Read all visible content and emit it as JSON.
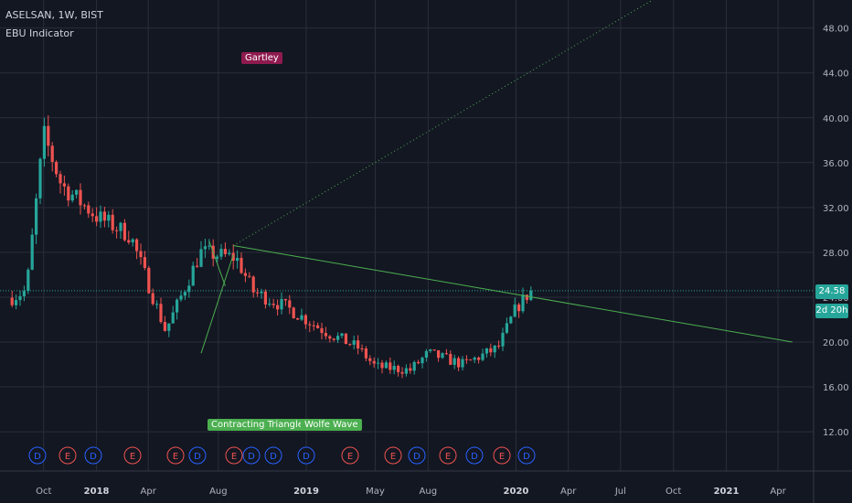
{
  "header": {
    "title": "ASELSAN, 1W, BIST",
    "indicator": "EBU Indicator"
  },
  "colors": {
    "background": "#131722",
    "grid": "#2a2e39",
    "up": "#26a69a",
    "down": "#ef5350",
    "trendline": "#4caf50",
    "pattern_label_green": "#4caf50",
    "pattern_label_maroon": "#8e1a4f",
    "event_dividend": "#2962ff",
    "event_earnings": "#ef5350",
    "axis_text": "#b2b5be"
  },
  "pattern_labels": [
    {
      "text": "Gartley",
      "color": "maroon"
    },
    {
      "text": "Contracting Triangle",
      "color": "green"
    },
    {
      "text": "Wolfe Wave",
      "color": "green"
    }
  ],
  "price_tags": {
    "last_price": "24.58",
    "countdown": "2d 20h"
  },
  "event_markers": [
    "D",
    "E",
    "D",
    "E",
    "E",
    "D",
    "E",
    "D",
    "D",
    "D",
    "E",
    "E",
    "D",
    "E",
    "D",
    "E",
    "D"
  ],
  "chart_data": {
    "type": "candlestick",
    "title": "ASELSAN, 1W, BIST",
    "y_axis": {
      "position": "right",
      "range": [
        8.5,
        50.5
      ],
      "ticks": [
        "12.00",
        "16.00",
        "20.00",
        "24.00",
        "28.00",
        "32.00",
        "36.00",
        "40.00",
        "44.00",
        "48.00"
      ]
    },
    "x_axis": {
      "ticks": [
        "Oct",
        "2018",
        "Apr",
        "Aug",
        "2019",
        "May",
        "Aug",
        "2020",
        "Apr",
        "Jul",
        "Oct",
        "2021",
        "Apr"
      ]
    },
    "grid": true,
    "last_price": 24.58,
    "approximate_close_path": [
      [
        "2017-08",
        23.8
      ],
      [
        "2017-09",
        24.6
      ],
      [
        "2017-10",
        38.5
      ],
      [
        "2017-11",
        34.0
      ],
      [
        "2018-01",
        31.2
      ],
      [
        "2018-03",
        29.5
      ],
      [
        "2018-05",
        21.0
      ],
      [
        "2018-06",
        24.5
      ],
      [
        "2018-07",
        28.0
      ],
      [
        "2018-09",
        27.5
      ],
      [
        "2018-10",
        24.5
      ],
      [
        "2018-12",
        23.0
      ],
      [
        "2019-02",
        21.0
      ],
      [
        "2019-04",
        19.5
      ],
      [
        "2019-05",
        17.8
      ],
      [
        "2019-07",
        17.5
      ],
      [
        "2019-08",
        19.0
      ],
      [
        "2019-10",
        18.0
      ],
      [
        "2019-12",
        19.5
      ],
      [
        "2020-01",
        23.0
      ],
      [
        "2020-01-27",
        24.58
      ]
    ],
    "trendlines": [
      {
        "x": [
          "2018-08-27",
          "2021-04-26"
        ],
        "y": [
          28.6,
          20.0
        ],
        "style": "solid"
      },
      {
        "x": [
          "2018-08-27",
          "2020-09-28"
        ],
        "y": [
          28.6,
          51.5
        ],
        "style": "dotted"
      },
      {
        "x": [
          "2018-07-02",
          "2018-08-27"
        ],
        "y": [
          19.0,
          27.8
        ],
        "style": "solid"
      },
      {
        "x": [
          "2018-07-16",
          "2018-08-13"
        ],
        "y": [
          29.0,
          25.0
        ],
        "style": "solid"
      }
    ]
  }
}
